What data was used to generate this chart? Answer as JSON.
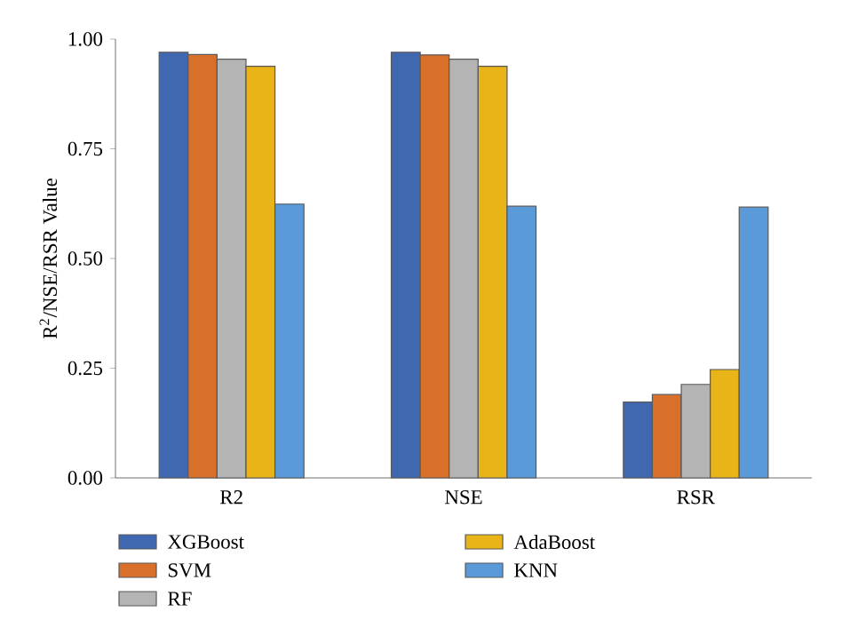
{
  "chart_data": {
    "type": "bar",
    "ylabel": "R$^{2}$/NSE/RSR Value",
    "categories": [
      "R2",
      "NSE",
      "RSR"
    ],
    "series": [
      {
        "name": "XGBoost",
        "color": "#4068b0",
        "values": [
          0.97,
          0.97,
          0.173
        ]
      },
      {
        "name": "SVM",
        "color": "#d8702a",
        "values": [
          0.965,
          0.964,
          0.19
        ]
      },
      {
        "name": "RF",
        "color": "#b4b4b4",
        "values": [
          0.954,
          0.954,
          0.213
        ]
      },
      {
        "name": "AdaBoost",
        "color": "#e8b418",
        "values": [
          0.938,
          0.938,
          0.247
        ]
      },
      {
        "name": "KNN",
        "color": "#5a9ad8",
        "values": [
          0.624,
          0.619,
          0.617
        ]
      }
    ],
    "ylim": [
      0,
      1
    ],
    "yticks": [
      {
        "value": 0,
        "label": "0.00"
      },
      {
        "value": 0.25,
        "label": "0.25"
      },
      {
        "value": 0.5,
        "label": "0.50"
      },
      {
        "value": 0.75,
        "label": "0.75"
      },
      {
        "value": 1,
        "label": "1.00"
      }
    ],
    "legend": "bottom"
  }
}
